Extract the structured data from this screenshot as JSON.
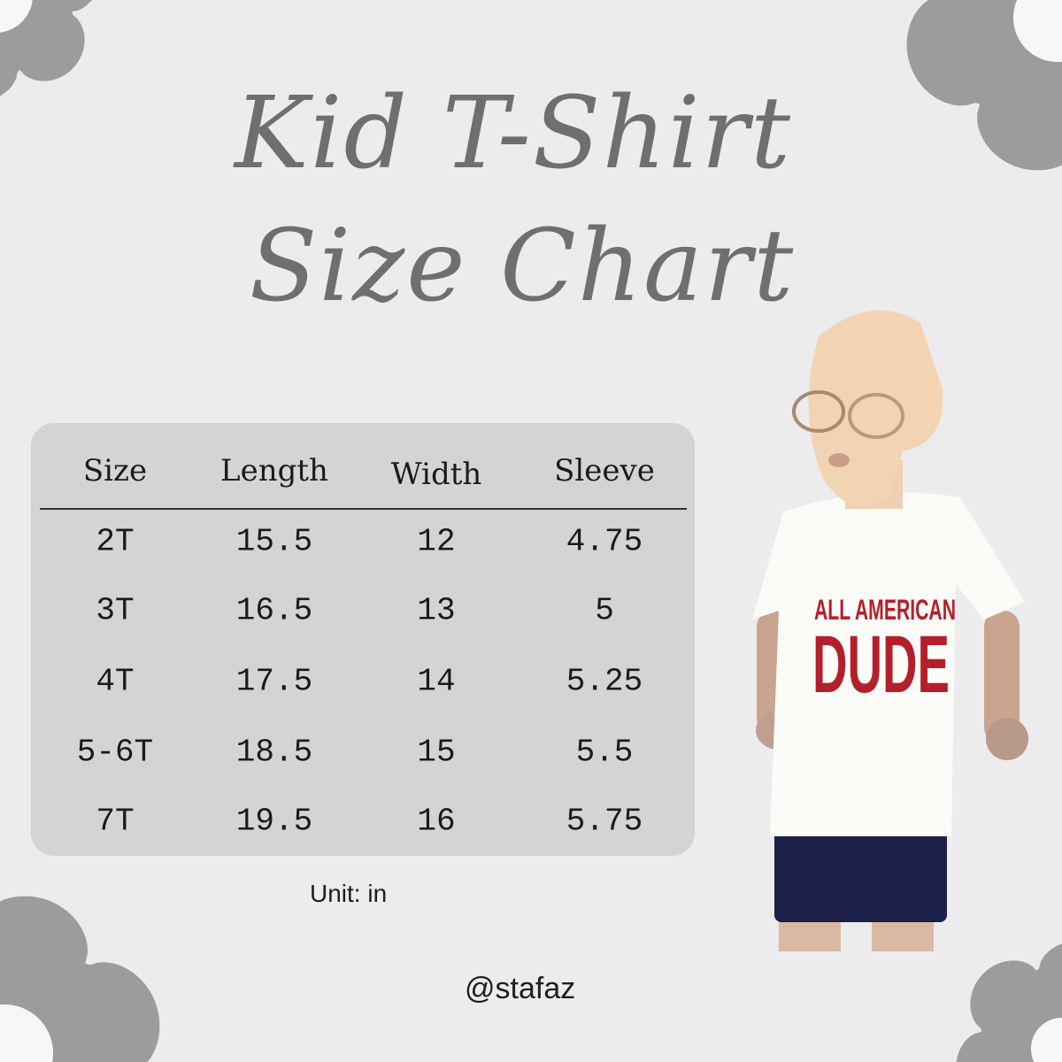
{
  "title": {
    "line1": "Kid T-Shirt",
    "line2": "Size Chart"
  },
  "table": {
    "headers": [
      "Size",
      "Length",
      "Width",
      "Sleeve"
    ],
    "rows": [
      [
        "2T",
        "15.5",
        "12",
        "4.75"
      ],
      [
        "3T",
        "16.5",
        "13",
        "5"
      ],
      [
        "4T",
        "17.5",
        "14",
        "5.25"
      ],
      [
        "5-6T",
        "18.5",
        "15",
        "5.5"
      ],
      [
        "7T",
        "19.5",
        "16",
        "5.75"
      ]
    ]
  },
  "unit_note": "Unit: in",
  "handle": "@stafaz",
  "photo": {
    "shirt_line1": "ALL AMERICAN",
    "shirt_line2": "DUDE"
  },
  "colors": {
    "background": "#ecebee",
    "flower": "#9a9c9e",
    "table_bg": "#d4d4d4",
    "title": "#6f6f70",
    "shirt_print": "#b3202c"
  }
}
